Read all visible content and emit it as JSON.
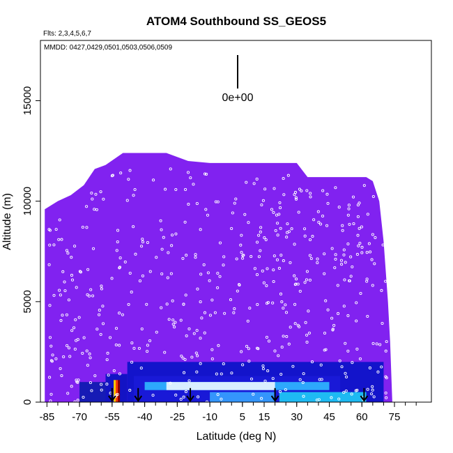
{
  "chart_data": {
    "type": "heatmap",
    "title": "ATOM4 Southbound SS_GEOS5",
    "subtitle_flights": "Flts: 2,3,4,5,6,7",
    "subtitle_dates": "MMDD: 0427,0429,0501,0503,0506,0509",
    "xlabel": "Latitude (deg N)",
    "ylabel": "Altitude (m)",
    "xlim": [
      -88,
      92
    ],
    "ylim": [
      0,
      18000
    ],
    "x_ticks": [
      -85,
      -70,
      -55,
      -40,
      -25,
      -10,
      5,
      15,
      30,
      45,
      60,
      75
    ],
    "x_tick_labels": [
      "-85",
      "-70",
      "-55",
      "-40",
      "-25",
      "-10",
      "5",
      "15",
      "30",
      "45",
      "60",
      "75"
    ],
    "y_ticks": [
      0,
      5000,
      10000,
      15000
    ],
    "y_tick_labels": [
      "0",
      "5000",
      "10000",
      "15000"
    ],
    "scale_bar_label": "0e+00",
    "background_color": "#8122F0",
    "grid": false,
    "legend": "none",
    "curtain_top": [
      [
        -86,
        9600
      ],
      [
        -80,
        10000
      ],
      [
        -74,
        10300
      ],
      [
        -68,
        10800
      ],
      [
        -63,
        11600
      ],
      [
        -58,
        11800
      ],
      [
        -50,
        12400
      ],
      [
        -40,
        12400
      ],
      [
        -30,
        12400
      ],
      [
        -20,
        12000
      ],
      [
        -10,
        11900
      ],
      [
        0,
        11900
      ],
      [
        10,
        11900
      ],
      [
        20,
        11900
      ],
      [
        30,
        11900
      ],
      [
        35,
        11200
      ],
      [
        45,
        11200
      ],
      [
        55,
        11200
      ],
      [
        62,
        11200
      ],
      [
        65,
        11000
      ],
      [
        68,
        10000
      ],
      [
        70,
        8000
      ],
      [
        72,
        5000
      ],
      [
        73,
        3000
      ],
      [
        74,
        0
      ]
    ],
    "boundary_layer_bands": [
      {
        "lat_min": -70,
        "lat_max": -58,
        "alt_min": 0,
        "alt_max": 1000,
        "color": "#0d1bb0"
      },
      {
        "lat_min": -58,
        "lat_max": -48,
        "alt_min": 0,
        "alt_max": 1400,
        "color": "#0a12c0"
      },
      {
        "lat_min": -48,
        "lat_max": 70,
        "alt_min": 0,
        "alt_max": 2000,
        "color": "#0a14c8"
      },
      {
        "lat_min": -45,
        "lat_max": 50,
        "alt_min": 0,
        "alt_max": 1300,
        "color": "#1a1ad8"
      },
      {
        "lat_min": -40,
        "lat_max": 45,
        "alt_min": 600,
        "alt_max": 1000,
        "color": "#2fb4ff"
      },
      {
        "lat_min": -30,
        "lat_max": 20,
        "alt_min": 600,
        "alt_max": 1000,
        "color": "#e8f4ff"
      },
      {
        "lat_min": 22,
        "lat_max": 62,
        "alt_min": 0,
        "alt_max": 500,
        "color": "#1ec8f5"
      },
      {
        "lat_min": -10,
        "lat_max": 20,
        "alt_min": 0,
        "alt_max": 500,
        "color": "#36a0ff"
      }
    ],
    "hotspot": {
      "lat": -53,
      "alt": 600,
      "colors": [
        "#ffcc00",
        "#ff3a00",
        "#8b0000"
      ]
    },
    "arrow_latitudes": [
      -55,
      -43,
      -19,
      20,
      61
    ],
    "observation_points": {
      "lat_range": [
        -84,
        72
      ],
      "count": 520,
      "seed": 7
    }
  }
}
